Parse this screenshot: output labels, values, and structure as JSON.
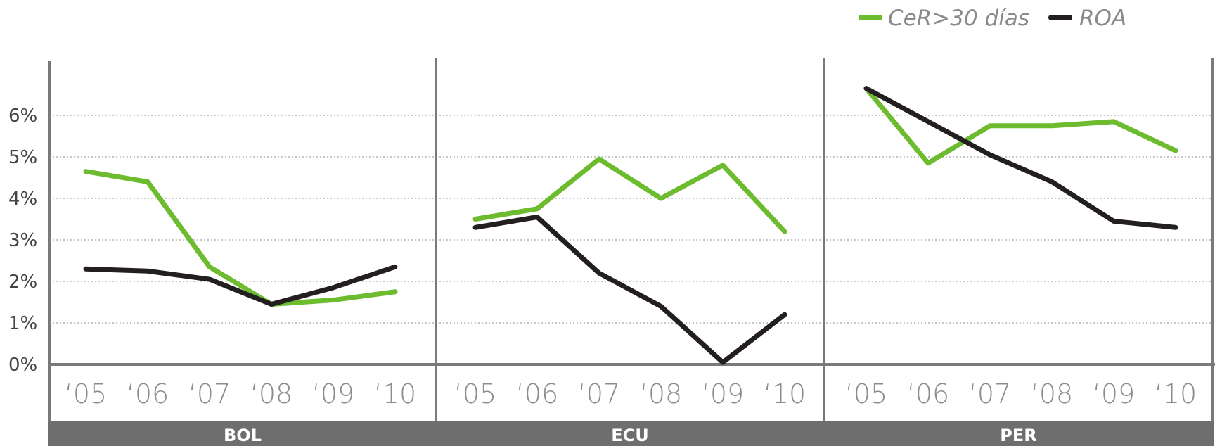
{
  "chart_data": {
    "type": "line",
    "legend_position": "top-right",
    "grid": true,
    "legend": [
      {
        "name": "CeR>30 días",
        "color": "#6dbb2e"
      },
      {
        "name": "ROA",
        "color": "#231f20"
      }
    ],
    "y_ticks": [
      "0%",
      "1%",
      "2%",
      "3%",
      "4%",
      "5%",
      "6%"
    ],
    "ylim": [
      0,
      7.3
    ],
    "categories": [
      "‘05",
      "‘06",
      "‘07",
      "‘08",
      "‘09",
      "‘10"
    ],
    "panels": [
      {
        "label": "BOL",
        "series": [
          {
            "name": "CeR>30 días",
            "values": [
              4.65,
              4.4,
              2.35,
              1.45,
              1.55,
              1.75
            ]
          },
          {
            "name": "ROA",
            "values": [
              2.3,
              2.25,
              2.05,
              1.45,
              1.85,
              2.35
            ]
          }
        ]
      },
      {
        "label": "ECU",
        "series": [
          {
            "name": "CeR>30 días",
            "values": [
              3.5,
              3.75,
              4.95,
              4.0,
              4.8,
              3.2
            ]
          },
          {
            "name": "ROA",
            "values": [
              3.3,
              3.55,
              2.2,
              1.4,
              0.05,
              1.2
            ]
          }
        ]
      },
      {
        "label": "PER",
        "series": [
          {
            "name": "CeR>30 días",
            "values": [
              6.65,
              4.85,
              5.75,
              5.75,
              5.85,
              5.15
            ]
          },
          {
            "name": "ROA",
            "values": [
              6.65,
              5.85,
              5.05,
              4.4,
              3.45,
              3.3
            ]
          }
        ]
      }
    ]
  }
}
